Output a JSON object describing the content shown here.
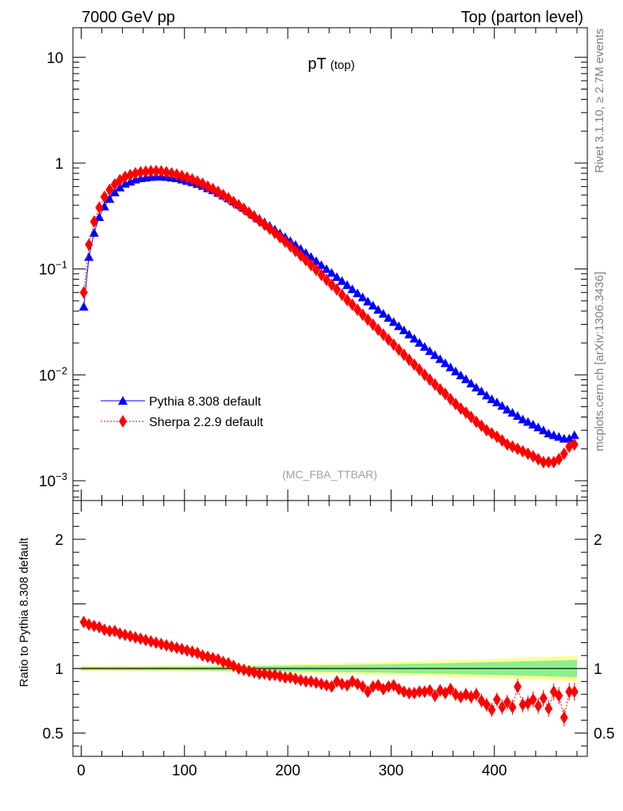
{
  "header": {
    "left": "7000 GeV pp",
    "right": "Top (parton level)"
  },
  "side_labels": {
    "top": "Rivet 3.1.10, ≥ 2.7M events",
    "bottom": "mcplots.cern.ch [arXiv:1306.3436]"
  },
  "chart_data": [
    {
      "type": "line",
      "title": "pT",
      "title_sub": "(top)",
      "watermark": "(MC_FBA_TTBAR)",
      "ylog": true,
      "xlim": [
        -8,
        490
      ],
      "ylim": [
        0.00065,
        19
      ],
      "yticks": [
        {
          "value": 0.001,
          "label": "10",
          "exp": "−3"
        },
        {
          "value": 0.01,
          "label": "10",
          "exp": "−2"
        },
        {
          "value": 0.1,
          "label": "10",
          "exp": "−1"
        },
        {
          "value": 1,
          "label": "1",
          "exp": ""
        },
        {
          "value": 10,
          "label": "10",
          "exp": ""
        }
      ],
      "legend_position": "left",
      "series": [
        {
          "name": "Pythia 8.308 default",
          "color": "#0000ff",
          "marker": "triangle",
          "x": [
            2.5,
            7.5,
            12.5,
            17.5,
            22.5,
            27.5,
            32.5,
            37.5,
            42.5,
            47.5,
            52.5,
            57.5,
            62.5,
            67.5,
            72.5,
            77.5,
            82.5,
            87.5,
            92.5,
            97.5,
            102.5,
            107.5,
            112.5,
            117.5,
            122.5,
            127.5,
            132.5,
            137.5,
            142.5,
            147.5,
            152.5,
            157.5,
            162.5,
            167.5,
            172.5,
            177.5,
            182.5,
            187.5,
            192.5,
            197.5,
            202.5,
            207.5,
            212.5,
            217.5,
            222.5,
            227.5,
            232.5,
            237.5,
            242.5,
            247.5,
            252.5,
            257.5,
            262.5,
            267.5,
            272.5,
            277.5,
            282.5,
            287.5,
            292.5,
            297.5,
            302.5,
            307.5,
            312.5,
            317.5,
            322.5,
            327.5,
            332.5,
            337.5,
            342.5,
            347.5,
            352.5,
            357.5,
            362.5,
            367.5,
            372.5,
            377.5,
            382.5,
            387.5,
            392.5,
            397.5,
            402.5,
            407.5,
            412.5,
            417.5,
            422.5,
            427.5,
            432.5,
            437.5,
            442.5,
            447.5,
            452.5,
            457.5,
            462.5,
            467.5,
            472.5,
            477.5
          ],
          "y": [
            0.044,
            0.13,
            0.22,
            0.31,
            0.39,
            0.46,
            0.53,
            0.59,
            0.64,
            0.67,
            0.7,
            0.72,
            0.73,
            0.74,
            0.745,
            0.745,
            0.74,
            0.73,
            0.72,
            0.7,
            0.68,
            0.66,
            0.635,
            0.61,
            0.58,
            0.555,
            0.525,
            0.495,
            0.465,
            0.435,
            0.405,
            0.378,
            0.35,
            0.325,
            0.3,
            0.277,
            0.256,
            0.236,
            0.217,
            0.2,
            0.184,
            0.169,
            0.155,
            0.142,
            0.13,
            0.119,
            0.109,
            0.1,
            0.092,
            0.084,
            0.077,
            0.0705,
            0.0645,
            0.059,
            0.054,
            0.0494,
            0.0452,
            0.0413,
            0.0378,
            0.0346,
            0.0316,
            0.0289,
            0.0264,
            0.0241,
            0.022,
            0.0201,
            0.0184,
            0.0168,
            0.0154,
            0.0141,
            0.0129,
            0.0118,
            0.0108,
            0.0099,
            0.0091,
            0.0083,
            0.0076,
            0.007,
            0.0064,
            0.0059,
            0.0055,
            0.0051,
            0.0047,
            0.0044,
            0.0041,
            0.0038,
            0.0036,
            0.0034,
            0.0032,
            0.003,
            0.0028,
            0.0027,
            0.0026,
            0.0025,
            0.0025,
            0.0027
          ]
        },
        {
          "name": "Sherpa 2.2.9 default",
          "color": "#ff0000",
          "marker": "diamond",
          "x": [
            2.5,
            7.5,
            12.5,
            17.5,
            22.5,
            27.5,
            32.5,
            37.5,
            42.5,
            47.5,
            52.5,
            57.5,
            62.5,
            67.5,
            72.5,
            77.5,
            82.5,
            87.5,
            92.5,
            97.5,
            102.5,
            107.5,
            112.5,
            117.5,
            122.5,
            127.5,
            132.5,
            137.5,
            142.5,
            147.5,
            152.5,
            157.5,
            162.5,
            167.5,
            172.5,
            177.5,
            182.5,
            187.5,
            192.5,
            197.5,
            202.5,
            207.5,
            212.5,
            217.5,
            222.5,
            227.5,
            232.5,
            237.5,
            242.5,
            247.5,
            252.5,
            257.5,
            262.5,
            267.5,
            272.5,
            277.5,
            282.5,
            287.5,
            292.5,
            297.5,
            302.5,
            307.5,
            312.5,
            317.5,
            322.5,
            327.5,
            332.5,
            337.5,
            342.5,
            347.5,
            352.5,
            357.5,
            362.5,
            367.5,
            372.5,
            377.5,
            382.5,
            387.5,
            392.5,
            397.5,
            402.5,
            407.5,
            412.5,
            417.5,
            422.5,
            427.5,
            432.5,
            437.5,
            442.5,
            447.5,
            452.5,
            457.5,
            462.5,
            467.5,
            472.5,
            477.5
          ],
          "y": [
            0.06,
            0.17,
            0.28,
            0.38,
            0.48,
            0.56,
            0.63,
            0.69,
            0.74,
            0.77,
            0.8,
            0.82,
            0.83,
            0.84,
            0.84,
            0.835,
            0.82,
            0.8,
            0.78,
            0.755,
            0.73,
            0.7,
            0.67,
            0.64,
            0.6,
            0.57,
            0.535,
            0.5,
            0.465,
            0.43,
            0.4,
            0.37,
            0.34,
            0.312,
            0.286,
            0.262,
            0.24,
            0.219,
            0.199,
            0.181,
            0.164,
            0.148,
            0.134,
            0.121,
            0.109,
            0.098,
            0.088,
            0.079,
            0.071,
            0.064,
            0.057,
            0.051,
            0.046,
            0.0412,
            0.037,
            0.0332,
            0.0298,
            0.0267,
            0.024,
            0.0215,
            0.0193,
            0.0173,
            0.0155,
            0.0139,
            0.0125,
            0.0112,
            0.01,
            0.009,
            0.0081,
            0.0073,
            0.0066,
            0.0059,
            0.0053,
            0.0048,
            0.0044,
            0.004,
            0.0036,
            0.0033,
            0.003,
            0.0028,
            0.0026,
            0.0024,
            0.0022,
            0.0021,
            0.002,
            0.0019,
            0.0018,
            0.0017,
            0.0016,
            0.0015,
            0.0015,
            0.0015,
            0.0016,
            0.0018,
            0.0021,
            0.0022
          ]
        }
      ]
    },
    {
      "type": "line",
      "ylabel": "Ratio to Pythia 8.308 default",
      "xlim": [
        -8,
        490
      ],
      "ylim": [
        0.32,
        2.3
      ],
      "xticks": [
        0,
        100,
        200,
        300,
        400
      ],
      "yticks": [
        0.5,
        1,
        2
      ],
      "reference_line": 1,
      "band_colors": {
        "inner": "#90ee90",
        "outer": "#ffff99"
      },
      "series": [
        {
          "name": "Sherpa 2.2.9 default",
          "color": "#ff0000",
          "marker": "diamond",
          "x": [
            2.5,
            7.5,
            12.5,
            17.5,
            22.5,
            27.5,
            32.5,
            37.5,
            42.5,
            47.5,
            52.5,
            57.5,
            62.5,
            67.5,
            72.5,
            77.5,
            82.5,
            87.5,
            92.5,
            97.5,
            102.5,
            107.5,
            112.5,
            117.5,
            122.5,
            127.5,
            132.5,
            137.5,
            142.5,
            147.5,
            152.5,
            157.5,
            162.5,
            167.5,
            172.5,
            177.5,
            182.5,
            187.5,
            192.5,
            197.5,
            202.5,
            207.5,
            212.5,
            217.5,
            222.5,
            227.5,
            232.5,
            237.5,
            242.5,
            247.5,
            252.5,
            257.5,
            262.5,
            267.5,
            272.5,
            277.5,
            282.5,
            287.5,
            292.5,
            297.5,
            302.5,
            307.5,
            312.5,
            317.5,
            322.5,
            327.5,
            332.5,
            337.5,
            342.5,
            347.5,
            352.5,
            357.5,
            362.5,
            367.5,
            372.5,
            377.5,
            382.5,
            387.5,
            392.5,
            397.5,
            402.5,
            407.5,
            412.5,
            417.5,
            422.5,
            427.5,
            432.5,
            437.5,
            442.5,
            447.5,
            452.5,
            457.5,
            462.5,
            467.5,
            472.5,
            477.5
          ],
          "y": [
            1.36,
            1.34,
            1.33,
            1.32,
            1.3,
            1.29,
            1.29,
            1.27,
            1.26,
            1.25,
            1.24,
            1.23,
            1.22,
            1.21,
            1.2,
            1.19,
            1.18,
            1.17,
            1.16,
            1.15,
            1.14,
            1.13,
            1.12,
            1.1,
            1.09,
            1.08,
            1.07,
            1.05,
            1.04,
            1.02,
            1.0,
            0.99,
            0.98,
            0.97,
            0.96,
            0.96,
            0.95,
            0.95,
            0.94,
            0.93,
            0.93,
            0.92,
            0.91,
            0.9,
            0.9,
            0.89,
            0.88,
            0.87,
            0.86,
            0.9,
            0.88,
            0.87,
            0.9,
            0.88,
            0.86,
            0.82,
            0.86,
            0.87,
            0.84,
            0.86,
            0.87,
            0.84,
            0.82,
            0.81,
            0.81,
            0.82,
            0.82,
            0.83,
            0.79,
            0.83,
            0.81,
            0.84,
            0.8,
            0.78,
            0.8,
            0.78,
            0.8,
            0.75,
            0.72,
            0.68,
            0.76,
            0.7,
            0.74,
            0.7,
            0.86,
            0.72,
            0.73,
            0.76,
            0.71,
            0.77,
            0.69,
            0.82,
            0.79,
            0.62,
            0.82,
            0.82
          ]
        }
      ]
    }
  ]
}
